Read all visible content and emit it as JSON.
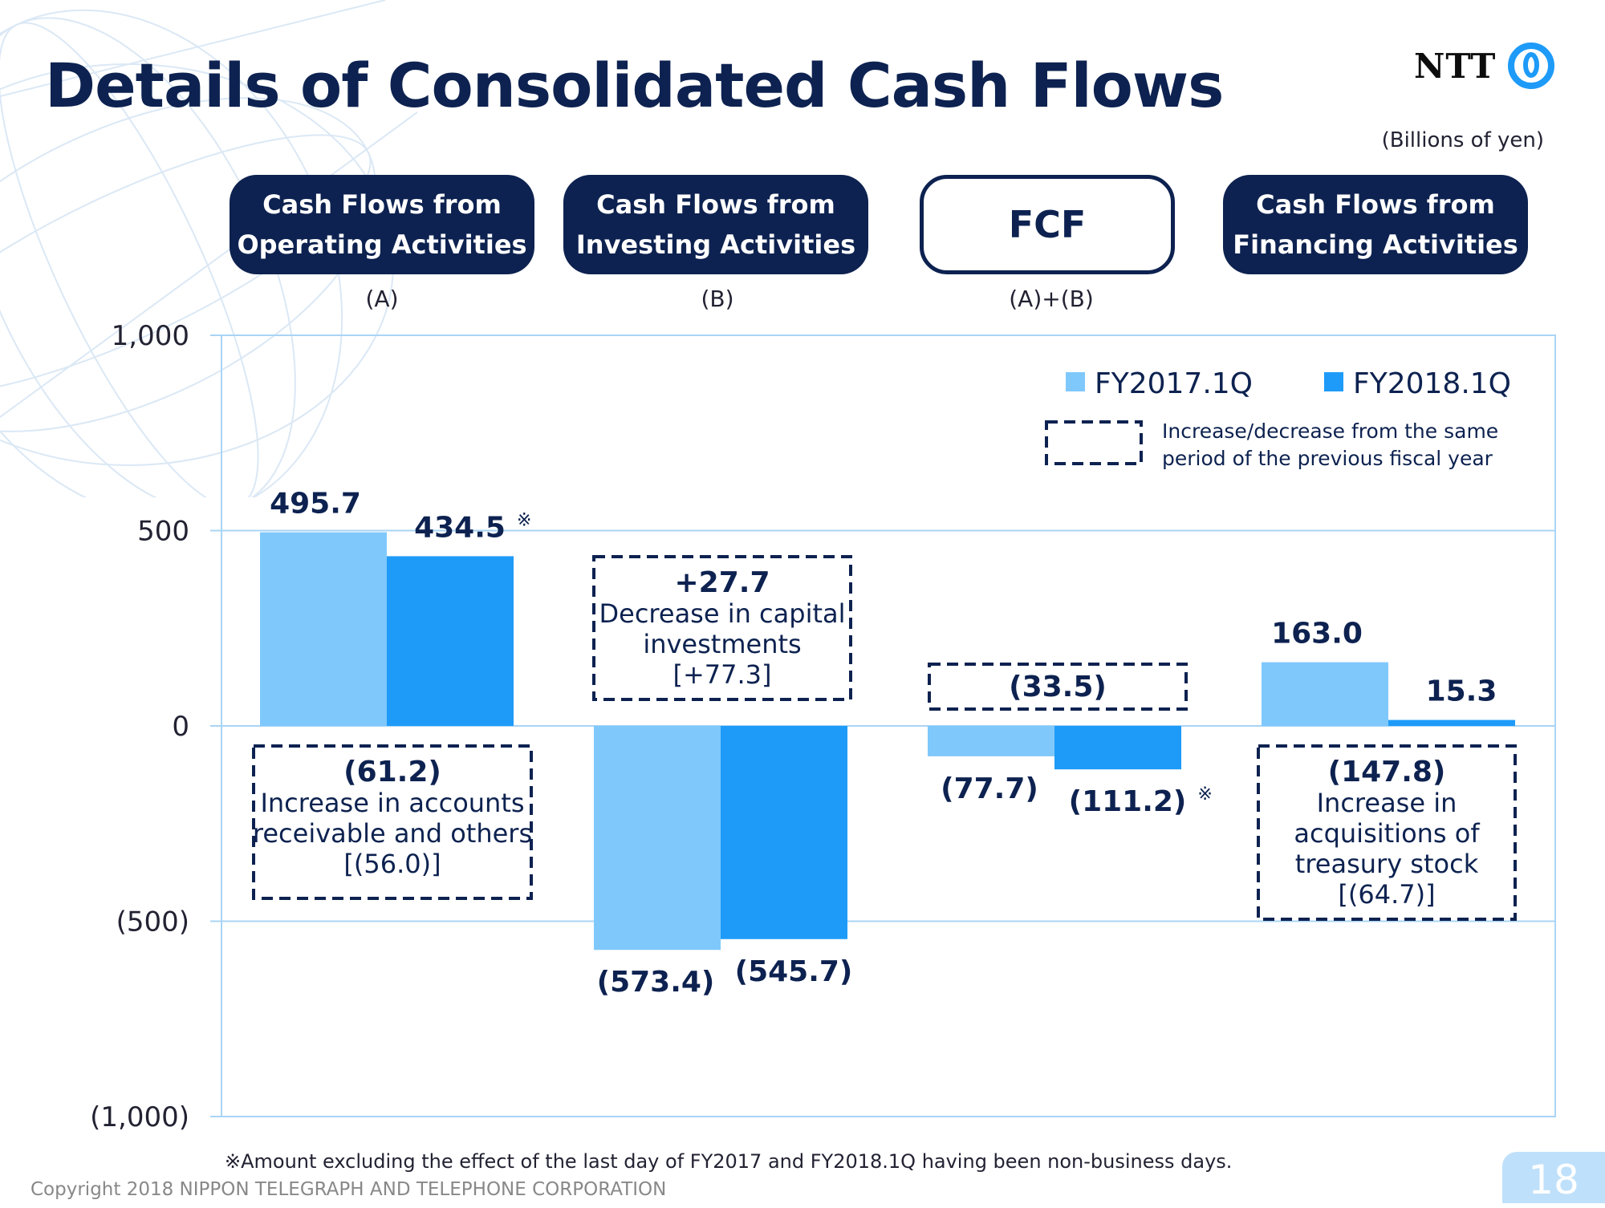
{
  "title": "Details of Consolidated Cash Flows",
  "logo_text": "NTT",
  "unit": "(Billions of yen)",
  "headers": [
    {
      "label": "Cash Flows from\nOperating Activities",
      "sub": "(A)"
    },
    {
      "label": "Cash Flows from\nInvesting Activities",
      "sub": "(B)"
    },
    {
      "label": "FCF",
      "sub": "(A)+(B)"
    },
    {
      "label": "Cash Flows from\nFinancing Activities",
      "sub": ""
    }
  ],
  "chart_data": {
    "type": "bar",
    "categories": [
      "Cash Flows from Operating Activities",
      "Cash Flows from Investing Activities",
      "FCF",
      "Cash Flows from Financing Activities"
    ],
    "series": [
      {
        "name": "FY2017.1Q",
        "values": [
          495.7,
          -573.4,
          -77.7,
          163.0
        ],
        "color": "#7fc8fc",
        "labels": [
          "495.7",
          "(573.4)",
          "(77.7)",
          "163.0"
        ]
      },
      {
        "name": "FY2018.1Q",
        "values": [
          434.5,
          -545.7,
          -111.2,
          15.3
        ],
        "color": "#1e9bf8",
        "labels": [
          "434.5",
          "(545.7)",
          "(111.2)",
          "15.3"
        ]
      }
    ],
    "ylim": [
      -1000,
      1000
    ],
    "yticks": [
      1000,
      500,
      0,
      -500,
      -1000
    ],
    "ytick_labels": [
      "1,000",
      "500",
      "0",
      "(500)",
      "(1,000)"
    ],
    "grid": true,
    "legend": {
      "placement": "top-right",
      "box_note": "Increase/decrease from the same period of the previous fiscal year"
    },
    "markers": {
      "symbol": "※",
      "on": [
        "434.5",
        "(111.2)"
      ]
    },
    "annotations": [
      {
        "category": 0,
        "lines": [
          "(61.2)",
          "Increase in accounts",
          "receivable and others",
          "[(56.0)]"
        ]
      },
      {
        "category": 1,
        "lines": [
          "+27.7",
          "Decrease in capital",
          "investments",
          "[+77.3]"
        ]
      },
      {
        "category": 2,
        "lines": [
          "(33.5)"
        ]
      },
      {
        "category": 3,
        "lines": [
          "(147.8)",
          "Increase in",
          "acquisitions of",
          "treasury stock",
          "[(64.7)]"
        ]
      }
    ]
  },
  "footnote": "※Amount excluding the effect of the last day of FY2017 and FY2018.1Q having been non-business days.",
  "copyright": "Copyright 2018 NIPPON TELEGRAPH AND TELEPHONE CORPORATION",
  "page_number": "18"
}
